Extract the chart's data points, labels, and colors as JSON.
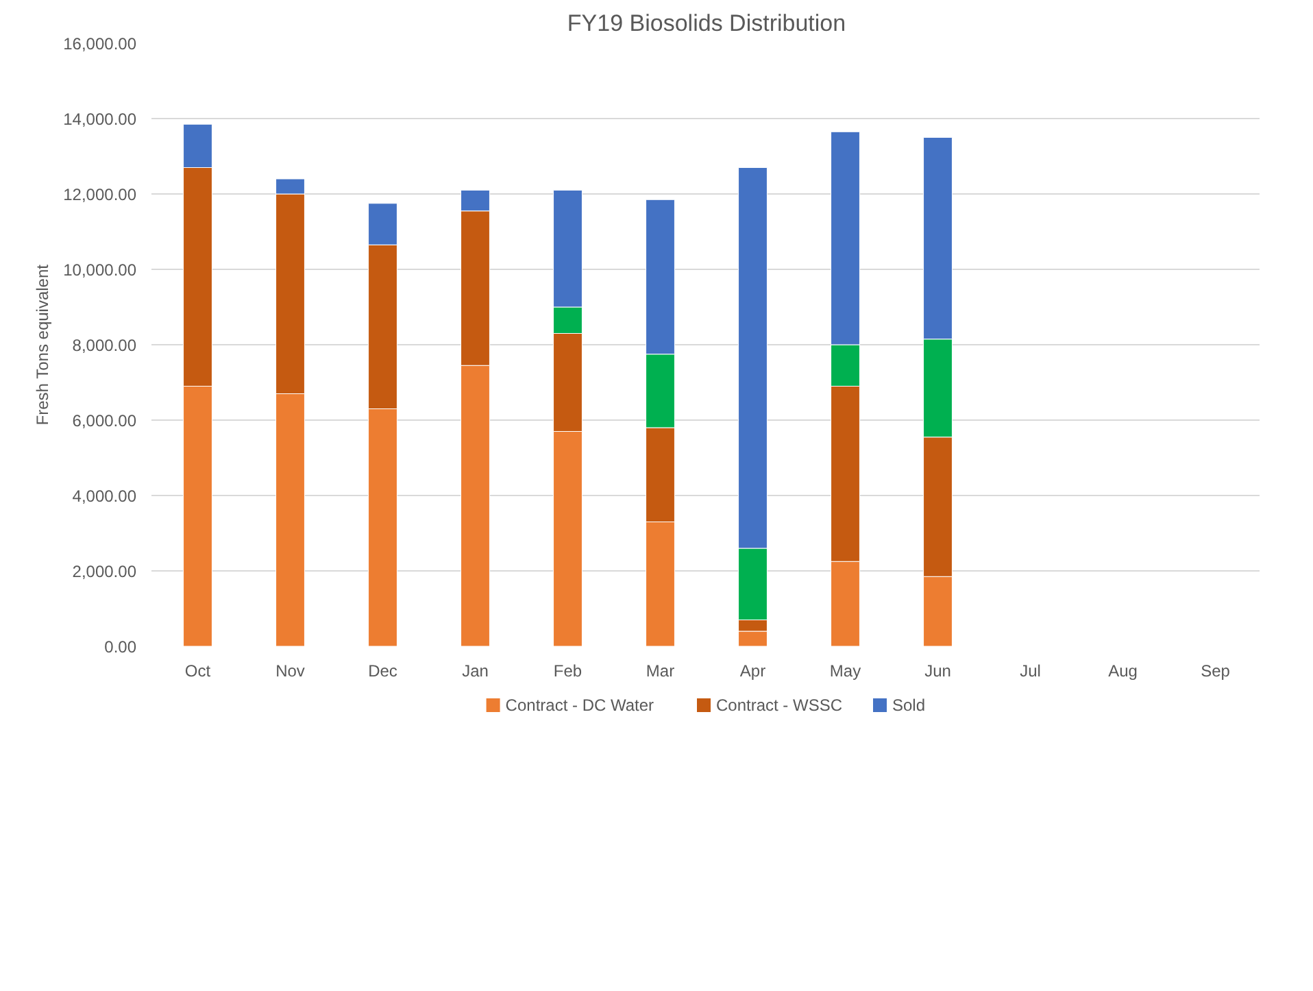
{
  "chart_data": {
    "type": "bar",
    "stacked": true,
    "title": "FY19 Biosolids Distribution",
    "ylabel": "Fresh Tons equivalent",
    "categories": [
      "Oct",
      "Nov",
      "Dec",
      "Jan",
      "Feb",
      "Mar",
      "Apr",
      "May",
      "Jun",
      "Jul",
      "Aug",
      "Sep"
    ],
    "series": [
      {
        "name": "Contract - DC Water",
        "color": "#ed7d31",
        "values": [
          6900,
          6700,
          6300,
          7450,
          5700,
          3300,
          400,
          2250,
          1850,
          null,
          null,
          null
        ]
      },
      {
        "name": "Contract - WSSC",
        "color": "#c55a11",
        "values": [
          5800,
          5300,
          4350,
          4100,
          2600,
          2500,
          300,
          4650,
          3700,
          null,
          null,
          null
        ]
      },
      {
        "color": "#00b050",
        "values": [
          null,
          null,
          null,
          null,
          700,
          1950,
          1900,
          1100,
          2600,
          null,
          null,
          null
        ]
      },
      {
        "name": "Sold",
        "color": "#4472c4",
        "values": [
          1150,
          400,
          1100,
          550,
          3100,
          4100,
          10100,
          5650,
          5350,
          null,
          null,
          null
        ]
      }
    ],
    "ylim": [
      0,
      16000
    ],
    "yticks": [
      {
        "value": 0,
        "label": "0.00"
      },
      {
        "value": 2000,
        "label": "2,000.00"
      },
      {
        "value": 4000,
        "label": "4,000.00"
      },
      {
        "value": 6000,
        "label": "6,000.00"
      },
      {
        "value": 8000,
        "label": "8,000.00"
      },
      {
        "value": 10000,
        "label": "10,000.00"
      },
      {
        "value": 12000,
        "label": "12,000.00"
      },
      {
        "value": 14000,
        "label": "14,000.00"
      },
      {
        "value": 16000,
        "label": "16,000.00"
      }
    ],
    "grid": "y",
    "legend": "bottom"
  }
}
